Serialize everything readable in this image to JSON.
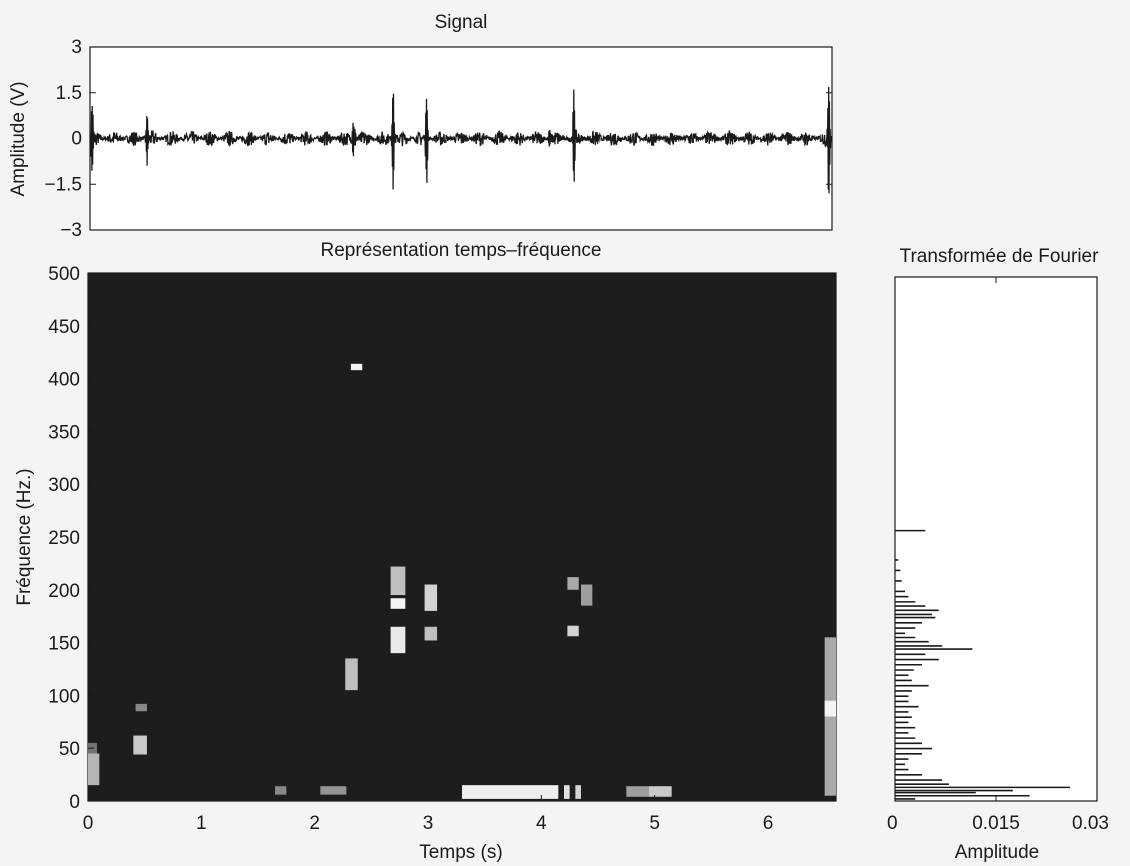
{
  "chart_data": [
    {
      "type": "line",
      "title": "Signal",
      "xlabel": "",
      "ylabel": "Amplitude (V)",
      "xlim": [
        0,
        6.55
      ],
      "ylim": [
        -3,
        3
      ],
      "yticks": [
        "3",
        "1.5",
        "0",
        "−1.5",
        "−3"
      ],
      "ytick_values": [
        3,
        1.5,
        0,
        -1.5,
        -3
      ],
      "xtick_labels_shown": false,
      "baseline_noise_amplitude": 0.25,
      "events": [
        {
          "t": 0.02,
          "amp": 1.2
        },
        {
          "t": 0.5,
          "amp": 1.35
        },
        {
          "t": 2.33,
          "amp": 1.6
        },
        {
          "t": 2.68,
          "amp": 2.6
        },
        {
          "t": 2.97,
          "amp": 1.5
        },
        {
          "t": 4.05,
          "amp": 0.6
        },
        {
          "t": 4.27,
          "amp": 1.65
        },
        {
          "t": 6.52,
          "amp": 2.1
        }
      ],
      "series": [
        {
          "color": "#1a1a1a"
        }
      ]
    },
    {
      "type": "heatmap",
      "title": "Représentation temps–fréquence",
      "xlabel": "Temps (s)",
      "ylabel": "Fréquence (Hz.)",
      "xlim": [
        0,
        6.6
      ],
      "ylim": [
        0,
        500
      ],
      "xticks": [
        "0",
        "1",
        "2",
        "3",
        "4",
        "5",
        "6"
      ],
      "xtick_values": [
        0,
        1,
        2,
        3,
        4,
        5,
        6
      ],
      "yticks": [
        "0",
        "50",
        "100",
        "150",
        "200",
        "250",
        "300",
        "350",
        "400",
        "450",
        "500"
      ],
      "ytick_values": [
        0,
        50,
        100,
        150,
        200,
        250,
        300,
        350,
        400,
        450,
        500
      ],
      "background": "#1d1d1d",
      "cells": [
        {
          "t0": 0.0,
          "t1": 0.1,
          "f0": 15,
          "f1": 45,
          "v": 0.65
        },
        {
          "t0": 0.0,
          "t1": 0.08,
          "f0": 45,
          "f1": 55,
          "v": 0.35
        },
        {
          "t0": 0.4,
          "t1": 0.52,
          "f0": 44,
          "f1": 62,
          "v": 0.75
        },
        {
          "t0": 0.42,
          "t1": 0.52,
          "f0": 85,
          "f1": 92,
          "v": 0.45
        },
        {
          "t0": 1.65,
          "t1": 1.75,
          "f0": 6,
          "f1": 14,
          "v": 0.45
        },
        {
          "t0": 2.05,
          "t1": 2.28,
          "f0": 6,
          "f1": 14,
          "v": 0.5
        },
        {
          "t0": 2.27,
          "t1": 2.38,
          "f0": 105,
          "f1": 135,
          "v": 0.7
        },
        {
          "t0": 2.32,
          "t1": 2.42,
          "f0": 408,
          "f1": 414,
          "v": 0.95
        },
        {
          "t0": 2.67,
          "t1": 2.8,
          "f0": 140,
          "f1": 165,
          "v": 0.9
        },
        {
          "t0": 2.67,
          "t1": 2.8,
          "f0": 182,
          "f1": 192,
          "v": 0.95
        },
        {
          "t0": 2.67,
          "t1": 2.8,
          "f0": 195,
          "f1": 222,
          "v": 0.7
        },
        {
          "t0": 2.97,
          "t1": 3.08,
          "f0": 152,
          "f1": 165,
          "v": 0.7
        },
        {
          "t0": 2.97,
          "t1": 3.08,
          "f0": 180,
          "f1": 205,
          "v": 0.8
        },
        {
          "t0": 3.3,
          "t1": 4.15,
          "f0": 2,
          "f1": 15,
          "v": 0.92
        },
        {
          "t0": 4.2,
          "t1": 4.25,
          "f0": 2,
          "f1": 15,
          "v": 0.85
        },
        {
          "t0": 4.3,
          "t1": 4.35,
          "f0": 2,
          "f1": 15,
          "v": 0.8
        },
        {
          "t0": 4.23,
          "t1": 4.33,
          "f0": 156,
          "f1": 166,
          "v": 0.8
        },
        {
          "t0": 4.23,
          "t1": 4.33,
          "f0": 200,
          "f1": 212,
          "v": 0.6
        },
        {
          "t0": 4.35,
          "t1": 4.45,
          "f0": 185,
          "f1": 205,
          "v": 0.55
        },
        {
          "t0": 4.75,
          "t1": 4.95,
          "f0": 4,
          "f1": 14,
          "v": 0.55
        },
        {
          "t0": 4.95,
          "t1": 5.15,
          "f0": 4,
          "f1": 14,
          "v": 0.75
        },
        {
          "t0": 6.5,
          "t1": 6.6,
          "f0": 5,
          "f1": 155,
          "v": 0.6
        },
        {
          "t0": 6.5,
          "t1": 6.6,
          "f0": 80,
          "f1": 95,
          "v": 0.95
        }
      ]
    },
    {
      "type": "bar",
      "orientation": "horizontal",
      "title": "Transformée de Fourier",
      "xlabel": "Amplitude",
      "ylabel": "",
      "xlim": [
        0,
        0.03
      ],
      "ylim": [
        0,
        500
      ],
      "xticks": [
        "0",
        "0.015",
        "0.03"
      ],
      "xtick_values": [
        0,
        0.015,
        0.03
      ],
      "ytick_labels_shown": false,
      "spectrum": [
        {
          "f": 2,
          "a": 0.003
        },
        {
          "f": 5,
          "a": 0.02
        },
        {
          "f": 8,
          "a": 0.012
        },
        {
          "f": 10,
          "a": 0.0175
        },
        {
          "f": 13,
          "a": 0.026
        },
        {
          "f": 16,
          "a": 0.008
        },
        {
          "f": 20,
          "a": 0.007
        },
        {
          "f": 25,
          "a": 0.004
        },
        {
          "f": 30,
          "a": 0.002
        },
        {
          "f": 35,
          "a": 0.0015
        },
        {
          "f": 40,
          "a": 0.002
        },
        {
          "f": 45,
          "a": 0.004
        },
        {
          "f": 50,
          "a": 0.0055
        },
        {
          "f": 55,
          "a": 0.004
        },
        {
          "f": 60,
          "a": 0.003
        },
        {
          "f": 65,
          "a": 0.002
        },
        {
          "f": 70,
          "a": 0.003
        },
        {
          "f": 75,
          "a": 0.002
        },
        {
          "f": 80,
          "a": 0.0025
        },
        {
          "f": 85,
          "a": 0.002
        },
        {
          "f": 90,
          "a": 0.0035
        },
        {
          "f": 95,
          "a": 0.002
        },
        {
          "f": 100,
          "a": 0.002
        },
        {
          "f": 105,
          "a": 0.0025
        },
        {
          "f": 110,
          "a": 0.005
        },
        {
          "f": 115,
          "a": 0.0025
        },
        {
          "f": 120,
          "a": 0.002
        },
        {
          "f": 125,
          "a": 0.0028
        },
        {
          "f": 130,
          "a": 0.004
        },
        {
          "f": 135,
          "a": 0.0065
        },
        {
          "f": 140,
          "a": 0.0045
        },
        {
          "f": 145,
          "a": 0.0115
        },
        {
          "f": 148,
          "a": 0.007
        },
        {
          "f": 152,
          "a": 0.005
        },
        {
          "f": 156,
          "a": 0.003
        },
        {
          "f": 160,
          "a": 0.0015
        },
        {
          "f": 165,
          "a": 0.003
        },
        {
          "f": 170,
          "a": 0.004
        },
        {
          "f": 175,
          "a": 0.006
        },
        {
          "f": 178,
          "a": 0.0055
        },
        {
          "f": 182,
          "a": 0.0065
        },
        {
          "f": 186,
          "a": 0.0045
        },
        {
          "f": 190,
          "a": 0.003
        },
        {
          "f": 195,
          "a": 0.002
        },
        {
          "f": 200,
          "a": 0.0015
        },
        {
          "f": 210,
          "a": 0.001
        },
        {
          "f": 220,
          "a": 0.0008
        },
        {
          "f": 230,
          "a": 0.0005
        },
        {
          "f": 258,
          "a": 0.0045
        }
      ]
    }
  ]
}
